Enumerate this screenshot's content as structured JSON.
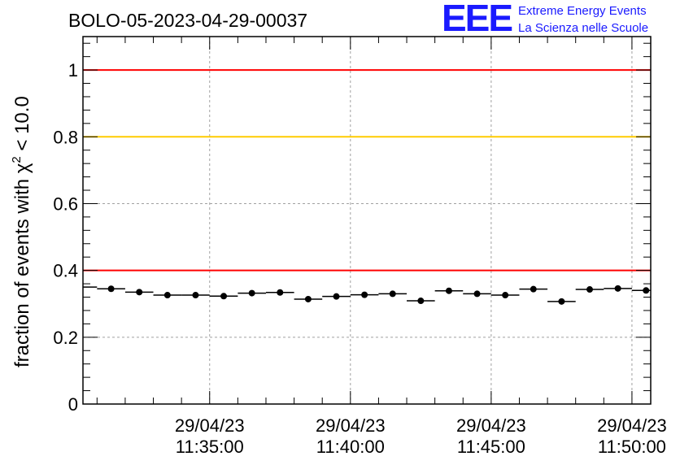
{
  "chart_data": {
    "type": "scatter",
    "title": "BOLO-05-2023-04-29-00037",
    "ylabel_main": "fraction of events with χ",
    "ylabel_sup": "2",
    "ylabel_tail": " < 10.0",
    "xlabel": "",
    "xlim": [
      "11:30:30",
      "11:50:40"
    ],
    "ylim": [
      0,
      1.1
    ],
    "y_ticks": [
      0,
      0.2,
      0.4,
      0.6,
      0.8,
      1
    ],
    "y_tick_labels": [
      "0",
      "0.2",
      "0.4",
      "0.6",
      "0.8",
      "1"
    ],
    "x_tick_labels": [
      {
        "date": "29/04/23",
        "time": "11:35:00"
      },
      {
        "date": "29/04/23",
        "time": "11:40:00"
      },
      {
        "date": "29/04/23",
        "time": "11:45:00"
      },
      {
        "date": "29/04/23",
        "time": "11:50:00"
      }
    ],
    "x_ticks": [
      "11:35:00",
      "11:40:00",
      "11:45:00",
      "11:50:00"
    ],
    "grid": true,
    "reference_lines": [
      {
        "y": 1.0,
        "color": "#ff0000"
      },
      {
        "y": 0.8,
        "color": "#ffcc00"
      },
      {
        "y": 0.4,
        "color": "#ff0000"
      }
    ],
    "bin_width_seconds": 60,
    "x": [
      "11:30:30",
      "11:31:30",
      "11:32:30",
      "11:33:30",
      "11:34:30",
      "11:35:30",
      "11:36:30",
      "11:37:30",
      "11:38:30",
      "11:39:30",
      "11:40:30",
      "11:41:30",
      "11:42:30",
      "11:43:30",
      "11:44:30",
      "11:45:30",
      "11:46:30",
      "11:47:30",
      "11:48:30",
      "11:49:30",
      "11:50:30"
    ],
    "y": [
      0.35,
      0.345,
      0.335,
      0.326,
      0.326,
      0.323,
      0.332,
      0.334,
      0.314,
      0.322,
      0.327,
      0.33,
      0.309,
      0.339,
      0.33,
      0.326,
      0.344,
      0.307,
      0.343,
      0.346,
      0.34
    ]
  },
  "logo": {
    "mark": "EEE",
    "line1": "Extreme Energy Events",
    "line2": "La Scienza nelle Scuole"
  }
}
